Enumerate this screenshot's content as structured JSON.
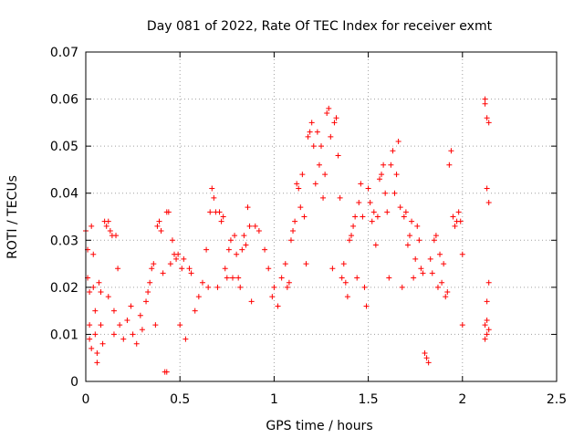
{
  "chart_data": {
    "type": "scatter",
    "title": "Day 081 of 2022, Rate Of TEC Index for receiver exmt",
    "xlabel": "GPS time / hours",
    "ylabel": "ROTI / TECUs",
    "xlim": [
      0,
      2.5
    ],
    "ylim": [
      0,
      0.07
    ],
    "x_ticks": [
      0,
      0.5,
      1,
      1.5,
      2,
      2.5
    ],
    "x_tick_labels": [
      "0",
      "0.5",
      "1",
      "1.5",
      "2",
      "2.5"
    ],
    "y_ticks": [
      0,
      0.01,
      0.02,
      0.03,
      0.04,
      0.05,
      0.06,
      0.07
    ],
    "y_tick_labels": [
      "0",
      "0.01",
      "0.02",
      "0.03",
      "0.04",
      "0.05",
      "0.06",
      "0.07"
    ],
    "grid": true,
    "legend": "none",
    "marker": "plus",
    "series": [
      {
        "color": "#ff0000",
        "points": [
          [
            0.0,
            0.032
          ],
          [
            0.01,
            0.028
          ],
          [
            0.01,
            0.022
          ],
          [
            0.02,
            0.019
          ],
          [
            0.02,
            0.012
          ],
          [
            0.02,
            0.009
          ],
          [
            0.03,
            0.007
          ],
          [
            0.03,
            0.033
          ],
          [
            0.04,
            0.027
          ],
          [
            0.04,
            0.02
          ],
          [
            0.05,
            0.015
          ],
          [
            0.05,
            0.01
          ],
          [
            0.06,
            0.006
          ],
          [
            0.06,
            0.004
          ],
          [
            0.07,
            0.021
          ],
          [
            0.08,
            0.019
          ],
          [
            0.08,
            0.012
          ],
          [
            0.09,
            0.008
          ],
          [
            0.1,
            0.034
          ],
          [
            0.11,
            0.033
          ],
          [
            0.12,
            0.034
          ],
          [
            0.12,
            0.018
          ],
          [
            0.13,
            0.032
          ],
          [
            0.14,
            0.031
          ],
          [
            0.15,
            0.015
          ],
          [
            0.15,
            0.01
          ],
          [
            0.16,
            0.031
          ],
          [
            0.17,
            0.024
          ],
          [
            0.18,
            0.012
          ],
          [
            0.2,
            0.009
          ],
          [
            0.22,
            0.013
          ],
          [
            0.24,
            0.016
          ],
          [
            0.25,
            0.01
          ],
          [
            0.27,
            0.008
          ],
          [
            0.29,
            0.014
          ],
          [
            0.3,
            0.011
          ],
          [
            0.32,
            0.017
          ],
          [
            0.33,
            0.019
          ],
          [
            0.34,
            0.021
          ],
          [
            0.35,
            0.024
          ],
          [
            0.36,
            0.025
          ],
          [
            0.37,
            0.012
          ],
          [
            0.38,
            0.033
          ],
          [
            0.39,
            0.034
          ],
          [
            0.4,
            0.032
          ],
          [
            0.41,
            0.023
          ],
          [
            0.42,
            0.002
          ],
          [
            0.43,
            0.002
          ],
          [
            0.43,
            0.036
          ],
          [
            0.44,
            0.036
          ],
          [
            0.45,
            0.025
          ],
          [
            0.46,
            0.03
          ],
          [
            0.47,
            0.027
          ],
          [
            0.48,
            0.026
          ],
          [
            0.49,
            0.027
          ],
          [
            0.5,
            0.012
          ],
          [
            0.51,
            0.024
          ],
          [
            0.52,
            0.026
          ],
          [
            0.53,
            0.009
          ],
          [
            0.55,
            0.024
          ],
          [
            0.56,
            0.023
          ],
          [
            0.58,
            0.015
          ],
          [
            0.6,
            0.018
          ],
          [
            0.62,
            0.021
          ],
          [
            0.64,
            0.028
          ],
          [
            0.65,
            0.02
          ],
          [
            0.66,
            0.036
          ],
          [
            0.67,
            0.041
          ],
          [
            0.68,
            0.039
          ],
          [
            0.69,
            0.036
          ],
          [
            0.7,
            0.02
          ],
          [
            0.71,
            0.036
          ],
          [
            0.72,
            0.034
          ],
          [
            0.73,
            0.035
          ],
          [
            0.74,
            0.024
          ],
          [
            0.75,
            0.022
          ],
          [
            0.76,
            0.028
          ],
          [
            0.77,
            0.03
          ],
          [
            0.78,
            0.022
          ],
          [
            0.79,
            0.031
          ],
          [
            0.8,
            0.027
          ],
          [
            0.81,
            0.022
          ],
          [
            0.82,
            0.02
          ],
          [
            0.83,
            0.028
          ],
          [
            0.84,
            0.031
          ],
          [
            0.85,
            0.029
          ],
          [
            0.86,
            0.037
          ],
          [
            0.87,
            0.033
          ],
          [
            0.88,
            0.017
          ],
          [
            0.9,
            0.033
          ],
          [
            0.92,
            0.032
          ],
          [
            0.95,
            0.028
          ],
          [
            0.97,
            0.024
          ],
          [
            0.99,
            0.018
          ],
          [
            1.0,
            0.02
          ],
          [
            1.02,
            0.016
          ],
          [
            1.04,
            0.022
          ],
          [
            1.06,
            0.025
          ],
          [
            1.07,
            0.02
          ],
          [
            1.08,
            0.021
          ],
          [
            1.09,
            0.03
          ],
          [
            1.1,
            0.032
          ],
          [
            1.11,
            0.034
          ],
          [
            1.12,
            0.042
          ],
          [
            1.13,
            0.041
          ],
          [
            1.14,
            0.037
          ],
          [
            1.15,
            0.044
          ],
          [
            1.16,
            0.035
          ],
          [
            1.17,
            0.025
          ],
          [
            1.18,
            0.052
          ],
          [
            1.19,
            0.053
          ],
          [
            1.2,
            0.055
          ],
          [
            1.21,
            0.05
          ],
          [
            1.22,
            0.042
          ],
          [
            1.23,
            0.053
          ],
          [
            1.24,
            0.046
          ],
          [
            1.25,
            0.05
          ],
          [
            1.26,
            0.039
          ],
          [
            1.27,
            0.044
          ],
          [
            1.28,
            0.057
          ],
          [
            1.29,
            0.058
          ],
          [
            1.3,
            0.052
          ],
          [
            1.31,
            0.024
          ],
          [
            1.32,
            0.055
          ],
          [
            1.33,
            0.056
          ],
          [
            1.34,
            0.048
          ],
          [
            1.35,
            0.039
          ],
          [
            1.36,
            0.022
          ],
          [
            1.37,
            0.025
          ],
          [
            1.38,
            0.021
          ],
          [
            1.39,
            0.018
          ],
          [
            1.4,
            0.03
          ],
          [
            1.41,
            0.031
          ],
          [
            1.42,
            0.033
          ],
          [
            1.43,
            0.035
          ],
          [
            1.44,
            0.022
          ],
          [
            1.45,
            0.038
          ],
          [
            1.46,
            0.042
          ],
          [
            1.47,
            0.035
          ],
          [
            1.48,
            0.02
          ],
          [
            1.49,
            0.016
          ],
          [
            1.5,
            0.041
          ],
          [
            1.51,
            0.038
          ],
          [
            1.52,
            0.034
          ],
          [
            1.53,
            0.036
          ],
          [
            1.54,
            0.029
          ],
          [
            1.55,
            0.035
          ],
          [
            1.56,
            0.043
          ],
          [
            1.57,
            0.044
          ],
          [
            1.58,
            0.046
          ],
          [
            1.59,
            0.04
          ],
          [
            1.6,
            0.036
          ],
          [
            1.61,
            0.022
          ],
          [
            1.62,
            0.046
          ],
          [
            1.63,
            0.049
          ],
          [
            1.64,
            0.04
          ],
          [
            1.65,
            0.044
          ],
          [
            1.66,
            0.051
          ],
          [
            1.67,
            0.037
          ],
          [
            1.68,
            0.02
          ],
          [
            1.69,
            0.035
          ],
          [
            1.7,
            0.036
          ],
          [
            1.71,
            0.029
          ],
          [
            1.72,
            0.031
          ],
          [
            1.73,
            0.034
          ],
          [
            1.74,
            0.022
          ],
          [
            1.75,
            0.026
          ],
          [
            1.76,
            0.033
          ],
          [
            1.77,
            0.03
          ],
          [
            1.78,
            0.024
          ],
          [
            1.79,
            0.023
          ],
          [
            1.8,
            0.006
          ],
          [
            1.81,
            0.005
          ],
          [
            1.82,
            0.004
          ],
          [
            1.83,
            0.026
          ],
          [
            1.84,
            0.023
          ],
          [
            1.85,
            0.03
          ],
          [
            1.86,
            0.031
          ],
          [
            1.87,
            0.02
          ],
          [
            1.88,
            0.027
          ],
          [
            1.89,
            0.021
          ],
          [
            1.9,
            0.025
          ],
          [
            1.91,
            0.018
          ],
          [
            1.92,
            0.019
          ],
          [
            1.93,
            0.046
          ],
          [
            1.94,
            0.049
          ],
          [
            1.95,
            0.035
          ],
          [
            1.96,
            0.033
          ],
          [
            1.97,
            0.034
          ],
          [
            1.98,
            0.036
          ],
          [
            1.99,
            0.034
          ],
          [
            2.0,
            0.027
          ],
          [
            2.0,
            0.012
          ],
          [
            2.12,
            0.06
          ],
          [
            2.12,
            0.059
          ],
          [
            2.13,
            0.056
          ],
          [
            2.13,
            0.041
          ],
          [
            2.14,
            0.038
          ],
          [
            2.14,
            0.055
          ],
          [
            2.13,
            0.017
          ],
          [
            2.14,
            0.021
          ],
          [
            2.12,
            0.012
          ],
          [
            2.13,
            0.01
          ],
          [
            2.14,
            0.011
          ],
          [
            2.12,
            0.009
          ],
          [
            2.13,
            0.013
          ]
        ]
      }
    ]
  }
}
